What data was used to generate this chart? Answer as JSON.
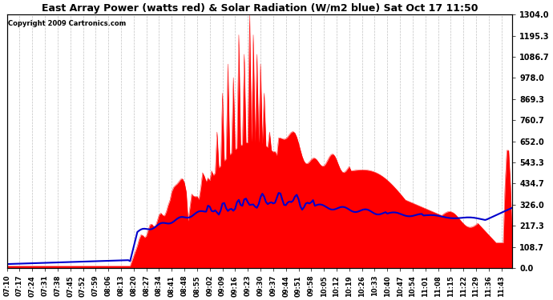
{
  "title": "East Array Power (watts red) & Solar Radiation (W/m2 blue) Sat Oct 17 11:50",
  "copyright": "Copyright 2009 Cartronics.com",
  "bg_color": "#ffffff",
  "grid_color": "#bbbbbb",
  "red_color": "#ff0000",
  "blue_color": "#0000cc",
  "ylim": [
    0.0,
    1304.0
  ],
  "yticks": [
    0.0,
    108.7,
    217.3,
    326.0,
    434.7,
    543.3,
    652.0,
    760.7,
    869.3,
    978.0,
    1086.7,
    1195.3,
    1304.0
  ],
  "x_start_min": 430,
  "x_end_min": 709,
  "x_tick_interval": 7,
  "figsize": [
    6.9,
    3.75
  ],
  "dpi": 100
}
